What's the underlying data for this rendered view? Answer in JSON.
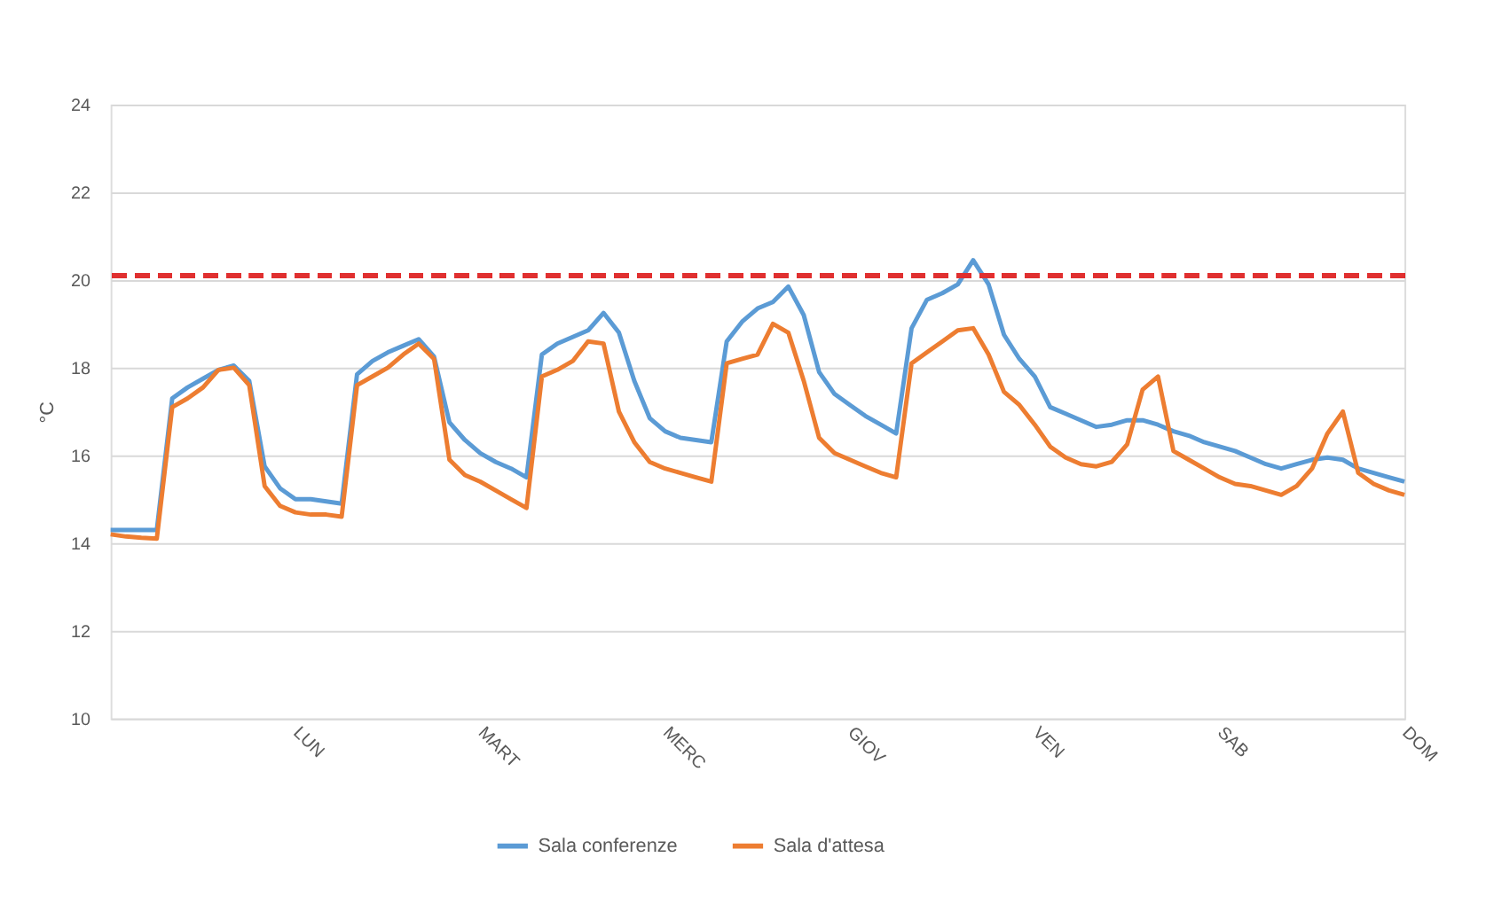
{
  "chart_data": {
    "type": "line",
    "ylabel": "°C",
    "categories": [
      null,
      null,
      null,
      null,
      null,
      null,
      null,
      null,
      null,
      null,
      null,
      null,
      "LUN",
      null,
      null,
      null,
      null,
      null,
      null,
      null,
      null,
      null,
      null,
      null,
      "MART",
      null,
      null,
      null,
      null,
      null,
      null,
      null,
      null,
      null,
      null,
      null,
      "MERC",
      null,
      null,
      null,
      null,
      null,
      null,
      null,
      null,
      null,
      null,
      null,
      "GIOV",
      null,
      null,
      null,
      null,
      null,
      null,
      null,
      null,
      null,
      null,
      null,
      "VEN",
      null,
      null,
      null,
      null,
      null,
      null,
      null,
      null,
      null,
      null,
      null,
      "SAB",
      null,
      null,
      null,
      null,
      null,
      null,
      null,
      null,
      null,
      null,
      null,
      "DOM"
    ],
    "ylim": [
      10,
      24
    ],
    "yticks": [
      10,
      12,
      14,
      16,
      18,
      20,
      22,
      24
    ],
    "grid": "y",
    "legend": "bottom",
    "line_style": "solid",
    "ref_lines": [
      {
        "axis": "y",
        "value": 20.1,
        "color": "#e03030",
        "line_style": "dashed"
      }
    ],
    "series": [
      {
        "name": "Sala conferenze",
        "color": "#5b9bd5",
        "values": [
          14.3,
          14.3,
          14.3,
          14.3,
          17.3,
          17.55,
          17.75,
          17.95,
          18.05,
          17.7,
          15.75,
          15.25,
          15.0,
          15.0,
          14.95,
          14.9,
          17.85,
          18.15,
          18.35,
          18.5,
          18.65,
          18.25,
          16.75,
          16.35,
          16.05,
          15.85,
          15.7,
          15.5,
          18.3,
          18.55,
          18.7,
          18.85,
          19.25,
          18.8,
          17.7,
          16.85,
          16.55,
          16.4,
          16.35,
          16.3,
          18.6,
          19.05,
          19.35,
          19.5,
          19.85,
          19.2,
          17.9,
          17.4,
          17.15,
          16.9,
          16.7,
          16.5,
          18.9,
          19.55,
          19.7,
          19.9,
          20.45,
          19.9,
          18.75,
          18.2,
          17.8,
          17.1,
          16.95,
          16.8,
          16.65,
          16.7,
          16.8,
          16.8,
          16.7,
          16.55,
          16.45,
          16.3,
          16.2,
          16.1,
          15.95,
          15.8,
          15.7,
          15.8,
          15.9,
          15.95,
          15.9,
          15.7,
          15.6,
          15.5,
          15.4
        ]
      },
      {
        "name": "Sala d'attesa",
        "color": "#ed7d31",
        "values": [
          14.2,
          14.15,
          14.12,
          14.1,
          17.1,
          17.3,
          17.55,
          17.95,
          18.0,
          17.6,
          15.3,
          14.85,
          14.7,
          14.65,
          14.65,
          14.6,
          17.6,
          17.8,
          18.0,
          18.3,
          18.55,
          18.2,
          15.9,
          15.55,
          15.4,
          15.2,
          15.0,
          14.8,
          17.8,
          17.95,
          18.15,
          18.6,
          18.55,
          17.0,
          16.3,
          15.85,
          15.7,
          15.6,
          15.5,
          15.4,
          18.1,
          18.2,
          18.3,
          19.0,
          18.8,
          17.7,
          16.4,
          16.05,
          15.9,
          15.75,
          15.6,
          15.5,
          18.1,
          18.35,
          18.6,
          18.85,
          18.9,
          18.3,
          17.45,
          17.15,
          16.7,
          16.2,
          15.95,
          15.8,
          15.75,
          15.85,
          16.25,
          17.5,
          17.8,
          16.1,
          15.9,
          15.7,
          15.5,
          15.35,
          15.3,
          15.2,
          15.1,
          15.3,
          15.7,
          16.5,
          17.0,
          15.6,
          15.35,
          15.2,
          15.1
        ]
      }
    ]
  }
}
